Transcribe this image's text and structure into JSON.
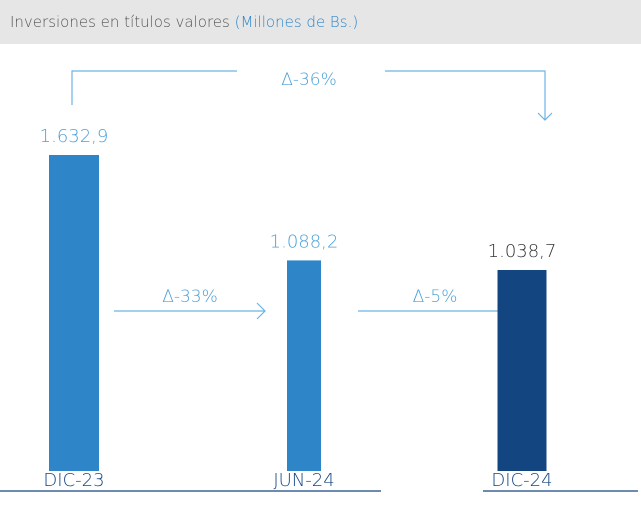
{
  "chart_data": {
    "type": "bar",
    "title": "Inversiones en títulos valores",
    "subtitle": "(Millones de Bs.)",
    "categories": [
      "DIC-23",
      "JUN-24",
      "DIC-24"
    ],
    "values": [
      1632.9,
      1088.2,
      1038.7
    ],
    "value_labels": [
      "1.632,9",
      "1.088,2",
      "1.038,7"
    ],
    "colors": [
      "#2e86c8",
      "#2e86c8",
      "#134680"
    ],
    "annotations": [
      "Δ-36%",
      "Δ-33%",
      "Δ-5%"
    ]
  }
}
